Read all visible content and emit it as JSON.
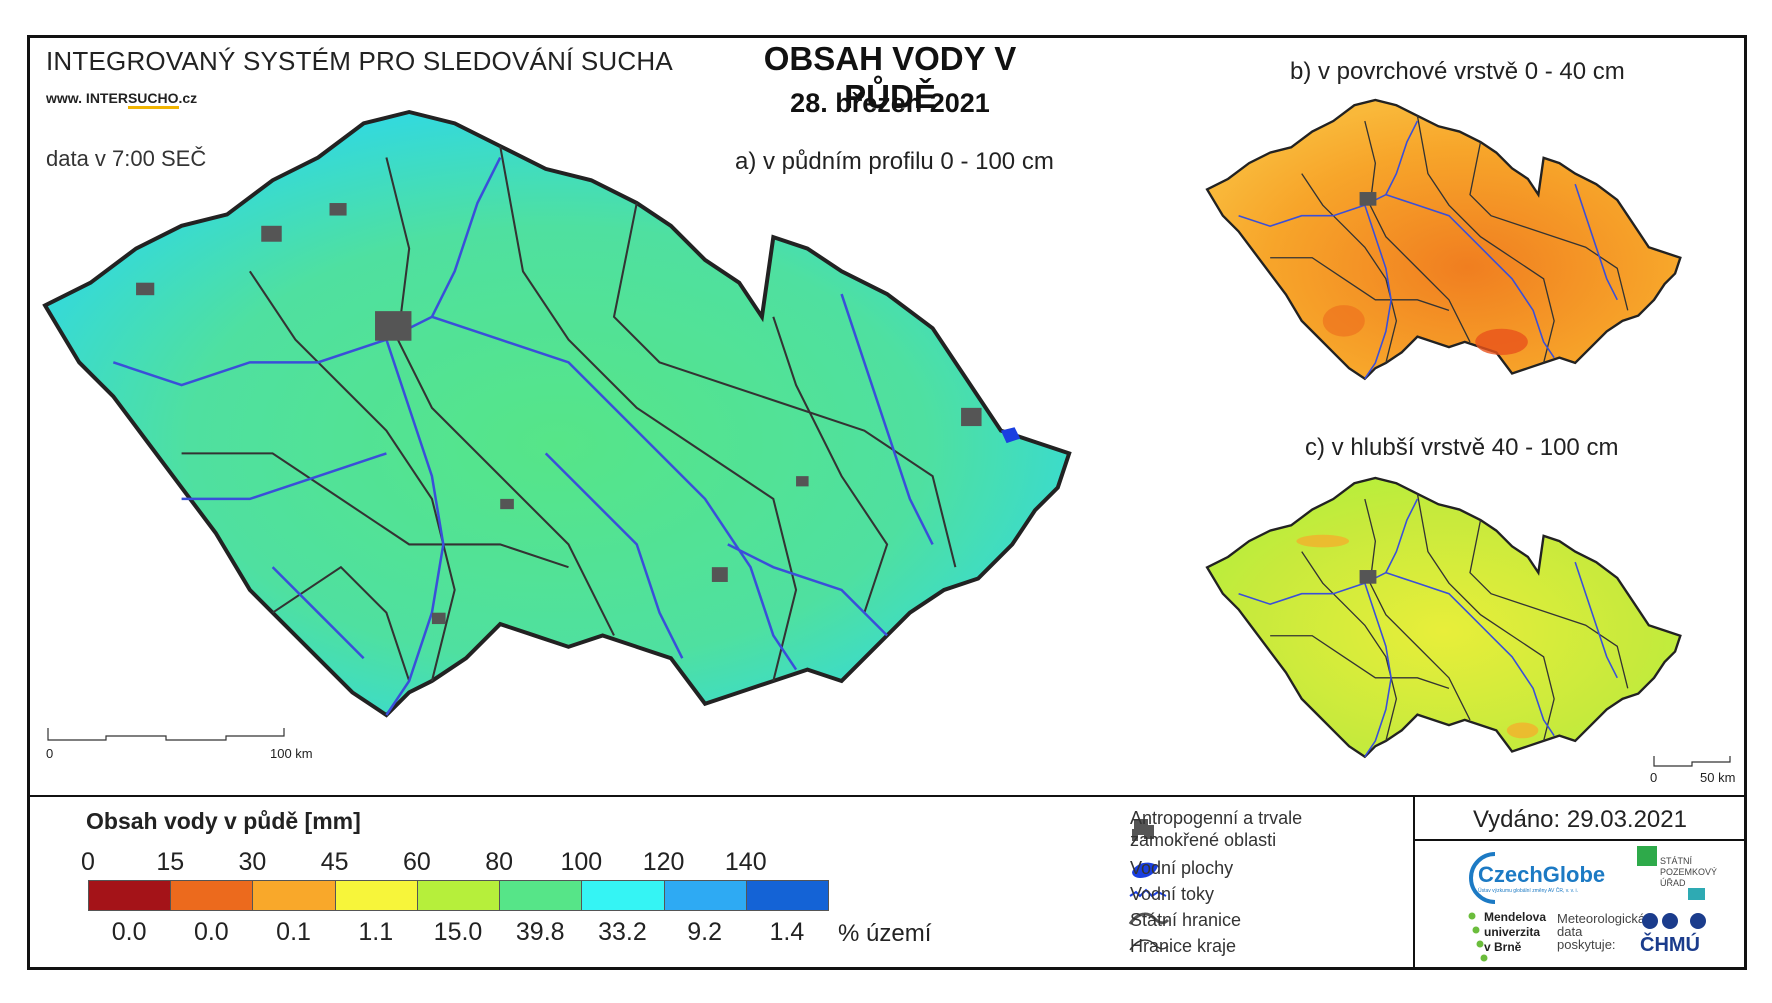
{
  "header": {
    "system_title": "INTEGROVANÝ SYSTÉM PRO SLEDOVÁNÍ SUCHA",
    "website_prefix": "www. INTER",
    "website_highlight": "SUCHO",
    "website_suffix": ".cz",
    "data_time": "data v 7:00 SEČ",
    "main_title": "OBSAH VODY V PŮDĚ",
    "main_date": "28. březen 2021"
  },
  "maps": {
    "a_label": "a) v půdním profilu 0 - 100 cm",
    "b_label": "b) v povrchové vrstvě 0 - 40 cm",
    "c_label": "c) v hlubší vrstvě 40 - 100 cm",
    "scale_main": {
      "start": "0",
      "end": "100 km"
    },
    "scale_small": {
      "start": "0",
      "end": "50 km"
    }
  },
  "legend": {
    "title": "Obsah vody v půdě  [mm]",
    "ticks": [
      "0",
      "15",
      "30",
      "45",
      "60",
      "80",
      "100",
      "120",
      "140"
    ],
    "classes": [
      {
        "color": "#a41318",
        "percent": "0.0"
      },
      {
        "color": "#ec6a1d",
        "percent": "0.0"
      },
      {
        "color": "#f9a82a",
        "percent": "0.1"
      },
      {
        "color": "#f7f53a",
        "percent": "1.1"
      },
      {
        "color": "#b6ef3b",
        "percent": "15.0"
      },
      {
        "color": "#56e588",
        "percent": "39.8"
      },
      {
        "color": "#35f4f4",
        "percent": "33.2"
      },
      {
        "color": "#2eaaf3",
        "percent": "9.2"
      },
      {
        "color": "#1463d6",
        "percent": "1.4"
      }
    ],
    "percent_unit": "% území"
  },
  "symbols": {
    "anthropogenic": "Antropogenní a trvale zamokřené oblasti",
    "anthropogenic_line1": "Antropogenní a trvale",
    "anthropogenic_line2": "zamokřené oblasti",
    "water_bodies": "Vodní plochy",
    "water_streams": "Vodní toky",
    "state_border": "Státní hranice",
    "region_border": "Hranice kraje"
  },
  "issue": {
    "issued": "Vydáno: 29.03.2021"
  },
  "logos": {
    "czechglobe": "CzechGlobe",
    "czechglobe_sub": "Ústav výzkumu globální změny AV ČR, v. v. i.",
    "spu_line1": "STÁTNÍ",
    "spu_line2": "POZEMKOVÝ",
    "spu_line3": "ÚŘAD",
    "mendel_line1": "Mendelova",
    "mendel_line2": "univerzita",
    "mendel_line3": "v Brně",
    "chmu_note_line1": "Meteorologická",
    "chmu_note_line2": "data",
    "chmu_note_line3": "poskytuje:",
    "chmu": "ČHMÚ"
  },
  "colors": {
    "border": "#111111",
    "rivers": "#3a4fd9",
    "urban": "#555555",
    "map_a_base": "#4fe08e",
    "map_b_base": "#f5a623",
    "map_c_base": "#cdea3a"
  }
}
